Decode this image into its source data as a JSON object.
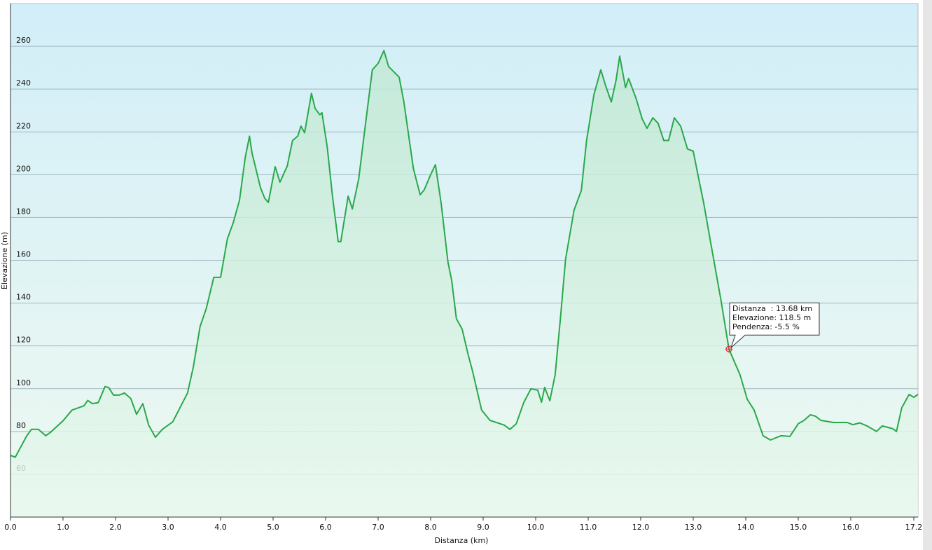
{
  "chart_data": {
    "type": "area",
    "xlabel": "Distanza  (km)",
    "ylabel": "Elevazione (m)",
    "color": "#2aa84a",
    "xlim": [
      0,
      17.28
    ],
    "ylim": [
      40,
      280
    ],
    "xticks": [
      {
        "value": 0,
        "label": "0.0"
      },
      {
        "value": 1,
        "label": "1.0"
      },
      {
        "value": 2,
        "label": "2.0"
      },
      {
        "value": 3,
        "label": "3.0"
      },
      {
        "value": 4,
        "label": "4.0"
      },
      {
        "value": 5,
        "label": "5.0"
      },
      {
        "value": 6,
        "label": "6.0"
      },
      {
        "value": 7,
        "label": "7.0"
      },
      {
        "value": 8,
        "label": "8.0"
      },
      {
        "value": 9,
        "label": "9.0"
      },
      {
        "value": 10,
        "label": "10.0"
      },
      {
        "value": 11,
        "label": "11.0"
      },
      {
        "value": 12,
        "label": "12.0"
      },
      {
        "value": 13,
        "label": "13.0"
      },
      {
        "value": 14,
        "label": "14.0"
      },
      {
        "value": 15,
        "label": "15.0"
      },
      {
        "value": 16,
        "label": "16.0"
      },
      {
        "value": 17.2,
        "label": "17.2"
      }
    ],
    "yticks": [
      60,
      80,
      100,
      120,
      140,
      160,
      180,
      200,
      220,
      240,
      260
    ],
    "grid": true,
    "x": [
      0,
      0.09,
      0.31,
      0.4,
      0.53,
      0.67,
      0.76,
      1.0,
      1.17,
      1.4,
      1.47,
      1.56,
      1.67,
      1.8,
      1.87,
      1.96,
      2.07,
      2.17,
      2.29,
      2.4,
      2.52,
      2.63,
      2.76,
      2.89,
      3.09,
      3.37,
      3.48,
      3.61,
      3.73,
      3.87,
      4.0,
      4.13,
      4.24,
      4.36,
      4.47,
      4.55,
      4.6,
      4.76,
      4.84,
      4.91,
      5.04,
      5.13,
      5.27,
      5.37,
      5.47,
      5.53,
      5.6,
      5.73,
      5.8,
      5.89,
      5.93,
      6.03,
      6.13,
      6.24,
      6.29,
      6.43,
      6.51,
      6.63,
      6.73,
      6.89,
      7.0,
      7.11,
      7.2,
      7.4,
      7.49,
      7.67,
      7.8,
      7.88,
      8.0,
      8.09,
      8.2,
      8.33,
      8.4,
      8.49,
      8.6,
      8.71,
      8.8,
      8.97,
      9.13,
      9.4,
      9.51,
      9.63,
      9.77,
      9.91,
      10.04,
      10.11,
      10.17,
      10.27,
      10.37,
      10.47,
      10.57,
      10.73,
      10.87,
      10.97,
      11.11,
      11.24,
      11.33,
      11.44,
      11.53,
      11.6,
      11.71,
      11.77,
      11.91,
      12.03,
      12.12,
      12.23,
      12.33,
      12.44,
      12.53,
      12.64,
      12.76,
      12.89,
      13.0,
      13.09,
      13.2,
      13.33,
      13.53,
      13.68,
      13.89,
      14.03,
      14.16,
      14.33,
      14.47,
      14.67,
      14.84,
      15.0,
      15.11,
      15.23,
      15.33,
      15.43,
      15.67,
      15.93,
      16.04,
      16.17,
      16.31,
      16.49,
      16.6,
      16.8,
      16.87,
      16.97,
      17.11,
      17.2,
      17.28
    ],
    "values": [
      68.8,
      68,
      78,
      81,
      81,
      78,
      79.6,
      85,
      90,
      92,
      94.5,
      93,
      93.5,
      101,
      100.5,
      97,
      97,
      98,
      95.4,
      88,
      93,
      83,
      77.3,
      81,
      84.5,
      98,
      110,
      129,
      137.6,
      152,
      152,
      170,
      177.5,
      188,
      208,
      218,
      210,
      194,
      189,
      187,
      203.7,
      196.5,
      204,
      216,
      218,
      222.7,
      219.6,
      238,
      231,
      228,
      229,
      213,
      190,
      168.7,
      168.7,
      190,
      184,
      198,
      218,
      249,
      252,
      258,
      250.5,
      245.6,
      234,
      203,
      190.6,
      193,
      200,
      204.7,
      186.7,
      159,
      150.7,
      132.7,
      127.8,
      116.3,
      108,
      90,
      85.2,
      83,
      81,
      83.6,
      93.4,
      100,
      99.3,
      93.7,
      100.6,
      94.4,
      106.5,
      132.7,
      160.5,
      183.4,
      192.6,
      216,
      237.4,
      249,
      241.7,
      234,
      244,
      255.4,
      240.7,
      245,
      235.8,
      226,
      221.7,
      226.6,
      224,
      216,
      216,
      226.6,
      222.7,
      212,
      211,
      199.8,
      186.7,
      168.7,
      141,
      118.5,
      106.5,
      95,
      90,
      78,
      76,
      78,
      77.7,
      83.6,
      85.2,
      87.8,
      87.1,
      85.2,
      84.2,
      84.2,
      83.2,
      84,
      82.6,
      80,
      82.6,
      81.3,
      80,
      91,
      97.3,
      96,
      97.3
    ],
    "tooltip": {
      "x": 13.68,
      "y": 118.5,
      "lines": [
        "Distanza  : 13.68 km",
        "Elevazione: 118.5 m",
        "Pendenza: -5.5 %"
      ]
    }
  }
}
